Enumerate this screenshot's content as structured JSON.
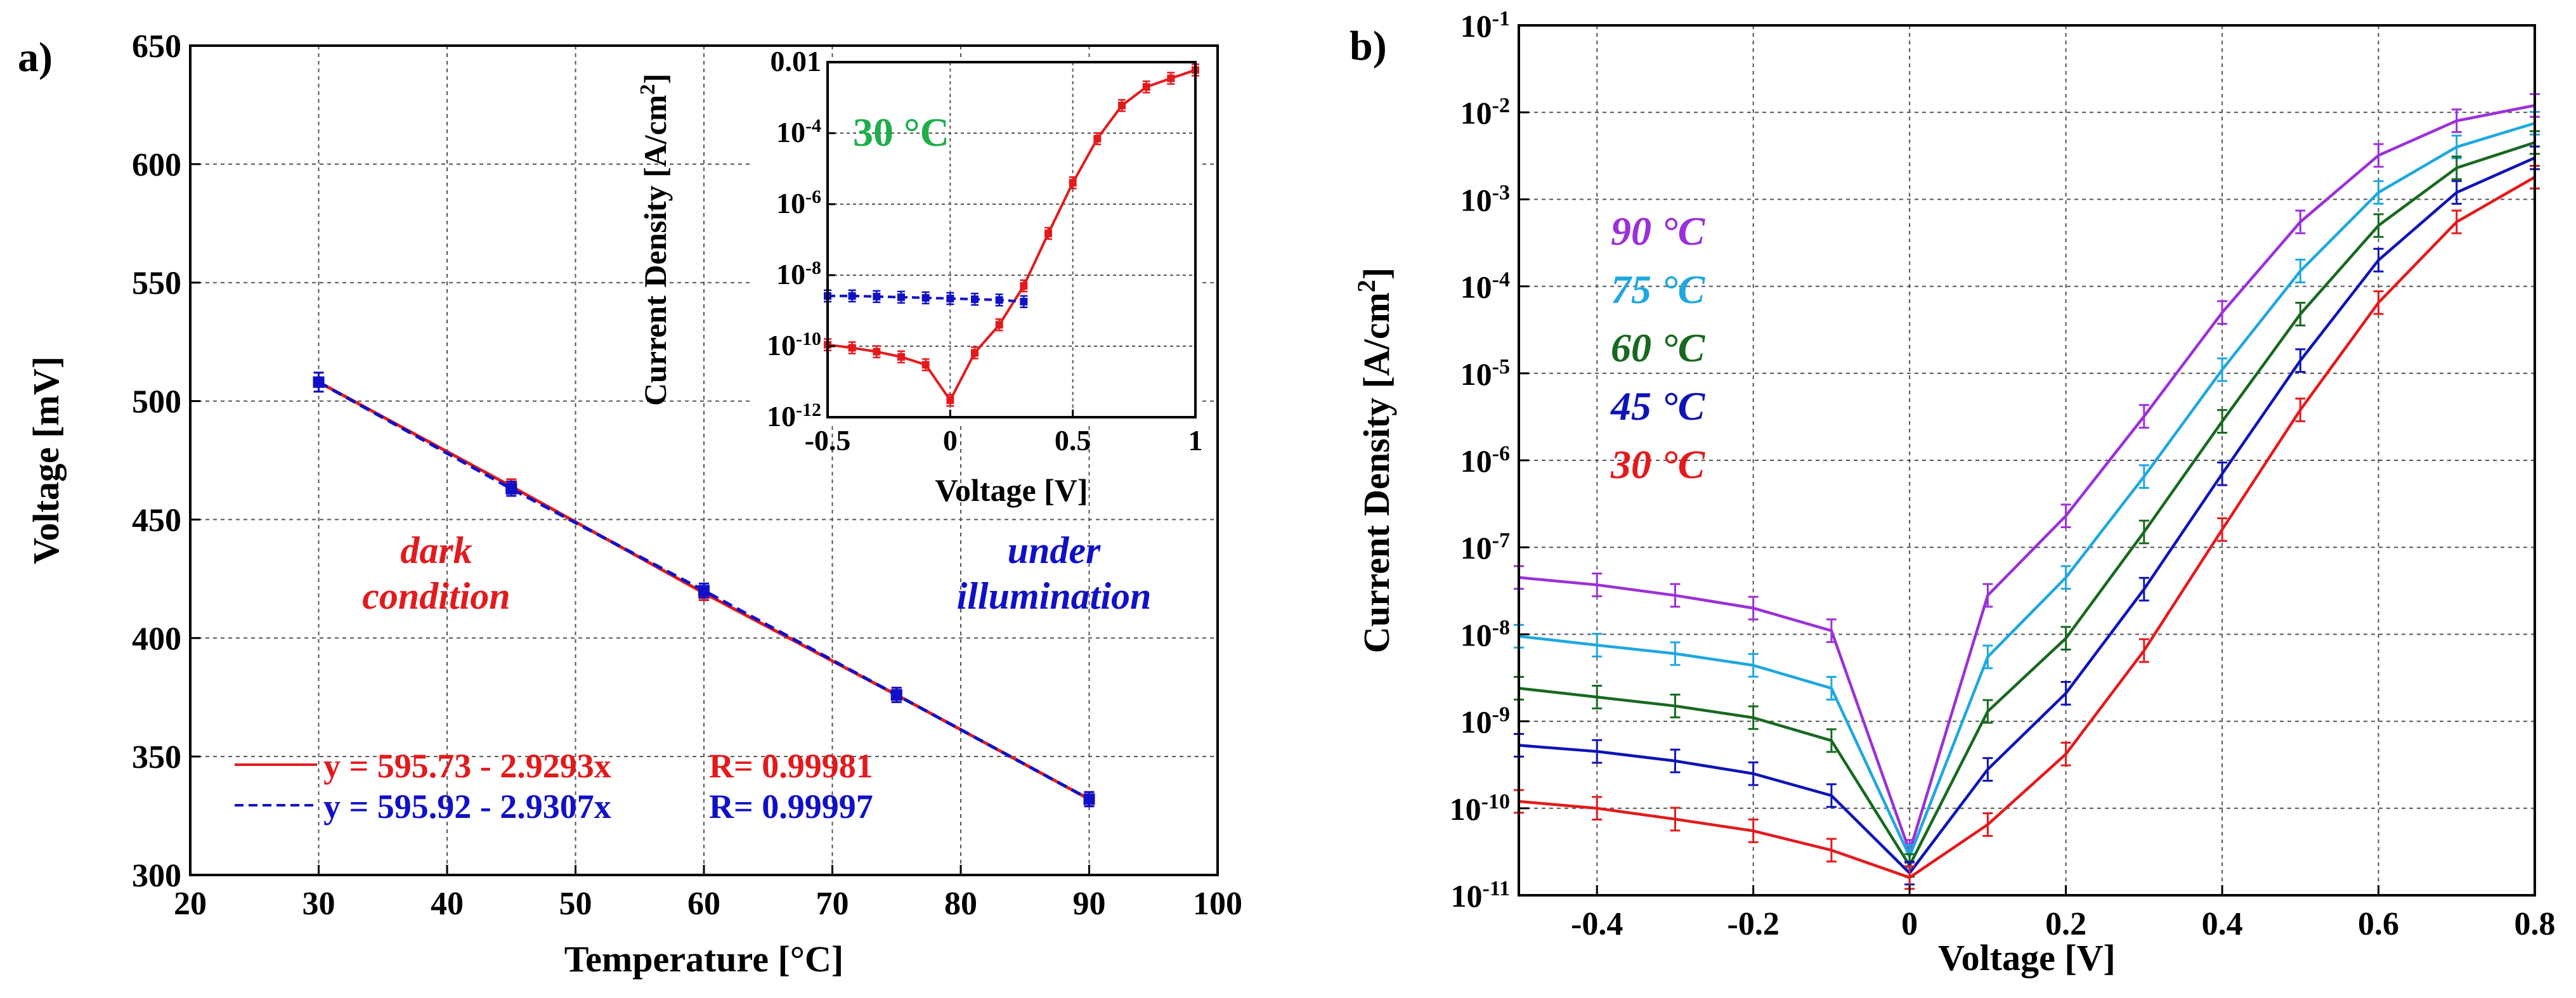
{
  "colors": {
    "red": "#e31a1c",
    "blue": "#1010c8",
    "green": "#1fae4b",
    "purple": "#9b30d9",
    "cyan": "#1ea7e1",
    "darkgreen": "#17691f",
    "navy": "#0e13b8",
    "axis": "#000000",
    "grid": "#555555"
  },
  "panel_a": {
    "label": "a)",
    "inset_temperature": "30 °C",
    "annotation_dark_1": "dark",
    "annotation_dark_2": "condition",
    "annotation_illum_1": "under",
    "annotation_illum_2": "illumination"
  },
  "panel_b": {
    "label": "b)"
  },
  "chart_data": [
    {
      "id": "a-main",
      "type": "line",
      "title": "",
      "xlabel": "Temperature [°C]",
      "ylabel": "Voltage [mV]",
      "xlim": [
        20,
        100
      ],
      "ylim": [
        300,
        650
      ],
      "xticks": [
        20,
        30,
        40,
        50,
        60,
        70,
        80,
        90,
        100
      ],
      "yticks": [
        300,
        350,
        400,
        450,
        500,
        550,
        600,
        650
      ],
      "grid": true,
      "series": [
        {
          "name": "dark condition",
          "color": "#e31a1c",
          "style": "solid",
          "fit_label": "y = 595.73 - 2.9293x",
          "r_label": "R= 0.99981",
          "x": [
            30,
            45,
            60,
            75,
            90
          ],
          "y": [
            508,
            464,
            419,
            376,
            332
          ],
          "err": [
            4,
            3,
            3,
            3,
            3
          ]
        },
        {
          "name": "under illumination",
          "color": "#1010c8",
          "style": "dashed",
          "fit_label": "y = 595.92 - 2.9307x",
          "r_label": "R= 0.99997",
          "x": [
            30,
            45,
            60,
            75,
            90
          ],
          "y": [
            508,
            463,
            420,
            376,
            332
          ],
          "err": [
            4,
            3,
            3,
            3,
            3
          ]
        }
      ]
    },
    {
      "id": "a-inset",
      "type": "line",
      "title": "",
      "xlabel": "Voltage [V]",
      "ylabel": "Current Density [A/cm2]",
      "yscale": "log",
      "xlim": [
        -0.5,
        1
      ],
      "ylim": [
        1e-12,
        0.01
      ],
      "xticks": [
        -0.5,
        0,
        0.5,
        1
      ],
      "xtick_labels": [
        "-0.5",
        "0",
        "0.5",
        "1"
      ],
      "ytick_labels": [
        {
          "mant": "10",
          "exp": "-12",
          "v": 1e-12
        },
        {
          "mant": "10",
          "exp": "-10",
          "v": 1e-10
        },
        {
          "mant": "10",
          "exp": "-8",
          "v": 1e-08
        },
        {
          "mant": "10",
          "exp": "-6",
          "v": 1e-06
        },
        {
          "mant": "10",
          "exp": "-4",
          "v": 0.0001
        },
        {
          "mant": "0.01",
          "exp": "",
          "v": 0.01
        }
      ],
      "grid": true,
      "series": [
        {
          "name": "dark",
          "color": "#e31a1c",
          "style": "solid",
          "x": [
            -0.5,
            -0.4,
            -0.3,
            -0.2,
            -0.1,
            0,
            0.1,
            0.2,
            0.3,
            0.4,
            0.5,
            0.6,
            0.7,
            0.8,
            0.9,
            1.0
          ],
          "y": [
            1.1e-10,
            9e-11,
            7e-11,
            5e-11,
            3e-11,
            3e-12,
            6.5e-11,
            4e-10,
            5e-09,
            1.5e-07,
            4e-06,
            7e-05,
            0.0006,
            0.002,
            0.0035,
            0.006
          ]
        },
        {
          "name": "illuminated",
          "color": "#1010c8",
          "style": "dashed",
          "x": [
            -0.5,
            -0.4,
            -0.3,
            -0.2,
            -0.1,
            0,
            0.1,
            0.2,
            0.3
          ],
          "y": [
            2.6e-09,
            2.6e-09,
            2.5e-09,
            2.4e-09,
            2.3e-09,
            2.2e-09,
            2.1e-09,
            2e-09,
            1.8e-09
          ]
        }
      ]
    },
    {
      "id": "b",
      "type": "line",
      "title": "",
      "xlabel": "Voltage [V]",
      "ylabel": "Current Density [A/cm2]",
      "yscale": "log",
      "xlim": [
        -0.5,
        0.8
      ],
      "ylim": [
        1e-11,
        0.1
      ],
      "xticks": [
        -0.4,
        -0.2,
        0,
        0.2,
        0.4,
        0.6,
        0.8
      ],
      "xtick_labels": [
        "-0.4",
        "-0.2",
        "0",
        "0.2",
        "0.4",
        "0.6",
        "0.8"
      ],
      "ytick_exponents": [
        "-11",
        "-10",
        "-9",
        "-8",
        "-7",
        "-6",
        "-5",
        "-4",
        "-3",
        "-2",
        "-1"
      ],
      "ytick_mantissa": "10",
      "grid": true,
      "x": [
        -0.5,
        -0.4,
        -0.3,
        -0.2,
        -0.1,
        0,
        0.1,
        0.2,
        0.3,
        0.4,
        0.5,
        0.6,
        0.7,
        0.8
      ],
      "series": [
        {
          "name": "90 °C",
          "color": "#9b30d9",
          "y": [
            4.5e-08,
            3.7e-08,
            2.8e-08,
            2e-08,
            1.1e-08,
            3.2e-11,
            2.8e-08,
            2.3e-07,
            3.2e-06,
            5e-05,
            0.00055,
            0.0032,
            0.008,
            0.012
          ]
        },
        {
          "name": "75 °C",
          "color": "#1ea7e1",
          "y": [
            9.5e-09,
            7.5e-09,
            6e-09,
            4.4e-09,
            2.4e-09,
            2.8e-11,
            5.5e-09,
            4.5e-08,
            6.5e-07,
            1.1e-05,
            0.00015,
            0.0012,
            0.004,
            0.0075
          ]
        },
        {
          "name": "60 °C",
          "color": "#17691f",
          "y": [
            2.4e-09,
            1.9e-09,
            1.5e-09,
            1.1e-09,
            6e-10,
            2.2e-11,
            1.3e-09,
            9e-09,
            1.5e-07,
            2.8e-06,
            4.8e-05,
            0.0005,
            0.0023,
            0.0045
          ]
        },
        {
          "name": "45 °C",
          "color": "#0e13b8",
          "y": [
            5.3e-10,
            4.5e-10,
            3.5e-10,
            2.5e-10,
            1.4e-10,
            1.8e-11,
            2.8e-10,
            2.1e-09,
            3.3e-08,
            7e-07,
            1.4e-05,
            0.0002,
            0.0012,
            0.003
          ]
        },
        {
          "name": "30 °C",
          "color": "#e31a1c",
          "y": [
            1.2e-10,
            1e-10,
            7.5e-11,
            5.5e-11,
            3.3e-11,
            1.6e-11,
            6.5e-11,
            4.2e-10,
            6.5e-09,
            1.6e-07,
            3.8e-06,
            6.5e-05,
            0.00055,
            0.0018
          ]
        }
      ]
    }
  ]
}
